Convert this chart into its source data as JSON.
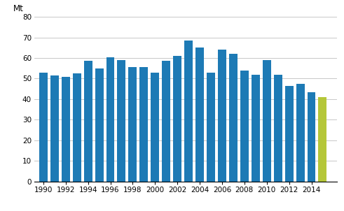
{
  "years": [
    1990,
    1991,
    1992,
    1993,
    1994,
    1995,
    1996,
    1997,
    1998,
    1999,
    2000,
    2001,
    2002,
    2003,
    2004,
    2005,
    2006,
    2007,
    2008,
    2009,
    2010,
    2011,
    2012,
    2013,
    2014,
    2015
  ],
  "values": [
    53,
    51.5,
    50.8,
    52.5,
    58.5,
    55,
    60.5,
    59,
    55.5,
    55.5,
    53,
    58.5,
    61,
    68.5,
    65,
    53,
    64,
    62,
    54,
    52,
    59,
    52,
    46.5,
    47.5,
    43.5,
    41
  ],
  "bar_color_default": "#1d7ab5",
  "bar_color_special": "#b5c739",
  "special_year": 2015,
  "ylim": [
    0,
    80
  ],
  "yticks": [
    0,
    10,
    20,
    30,
    40,
    50,
    60,
    70,
    80
  ],
  "xtick_years": [
    1990,
    1992,
    1994,
    1996,
    1998,
    2000,
    2002,
    2004,
    2006,
    2008,
    2010,
    2012,
    2014
  ],
  "ylabel": "Mt",
  "background_color": "#ffffff",
  "grid_color": "#c8c8c8"
}
